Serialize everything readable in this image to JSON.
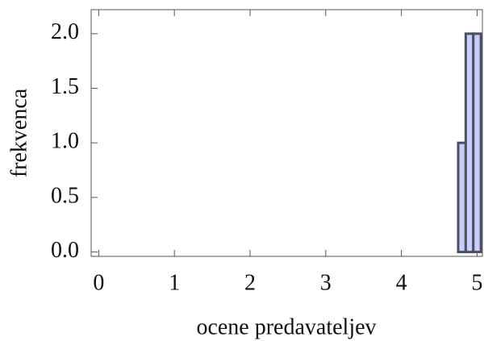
{
  "chart_data": {
    "type": "histogram",
    "x_label": "ocene predavateljev",
    "y_label": "frekvenca",
    "bins": [
      4.75,
      4.85,
      4.95,
      5.05
    ],
    "values": [
      1,
      2,
      2
    ],
    "color": "#c8cef7",
    "edge_color": "#4b4f62",
    "xlim": [
      -0.1,
      5.07
    ],
    "ylim": [
      -0.04,
      2.22
    ],
    "xticks": [
      0,
      1,
      2,
      3,
      4,
      5
    ],
    "yticks": [
      {
        "value": 0,
        "label": "0.0"
      },
      {
        "value": 0.5,
        "label": "0.5"
      },
      {
        "value": 1,
        "label": "1.0"
      },
      {
        "value": 1.5,
        "label": "1.5"
      },
      {
        "value": 2,
        "label": "2.0"
      }
    ]
  }
}
